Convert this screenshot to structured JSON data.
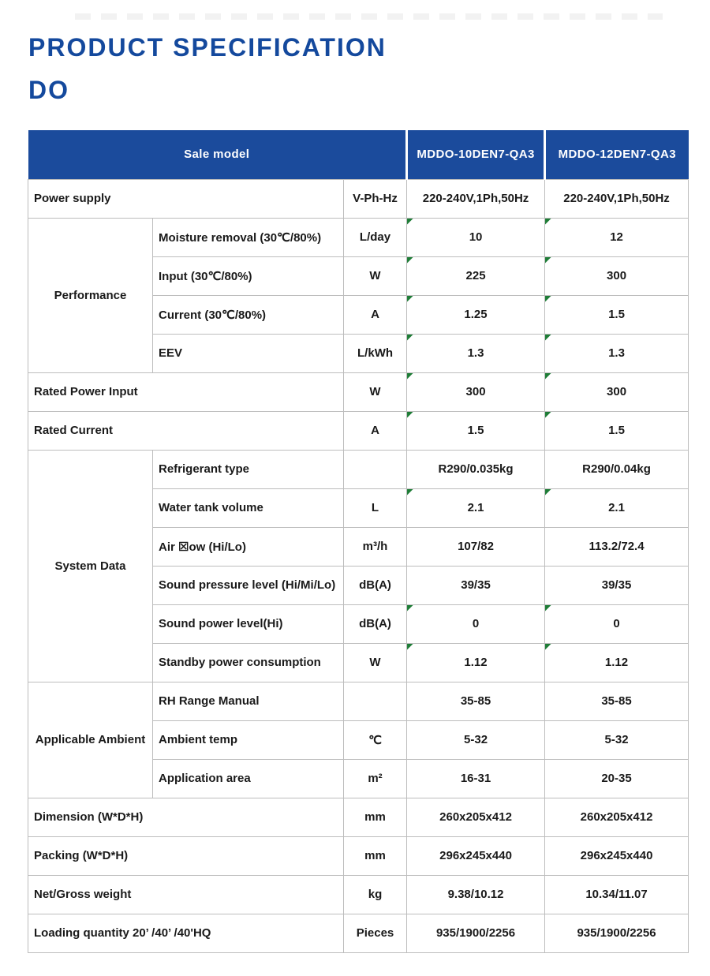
{
  "page": {
    "title_line1": "PRODUCT SPECIFICATION",
    "title_line2": "DO"
  },
  "colors": {
    "header_background": "#1b4b9c",
    "title_blue": "#14499d",
    "row_shade": "#efefef",
    "grid_border": "#bdbdbd",
    "cell_flag_green": "#1e7c36"
  },
  "table": {
    "header": {
      "label": "Sale model",
      "models": [
        "MDDO-10DEN7-QA3",
        "MDDO-12DEN7-QA3"
      ]
    },
    "rows": [
      {
        "group": null,
        "group_rowspan": 0,
        "label": "Power supply",
        "label_colspan": 2,
        "unit": "V-Ph-Hz",
        "values": [
          "220-240V,1Ph,50Hz",
          "220-240V,1Ph,50Hz"
        ],
        "shaded": false,
        "flagged": false
      },
      {
        "group": "Performance",
        "group_rowspan": 4,
        "label": "Moisture removal (30℃/80%)",
        "label_colspan": 1,
        "unit": "L/day",
        "values": [
          "10",
          "12"
        ],
        "shaded": true,
        "flagged": true
      },
      {
        "group": null,
        "group_rowspan": 0,
        "label": "Input (30℃/80%)",
        "label_colspan": 1,
        "unit": "W",
        "values": [
          "225",
          "300"
        ],
        "shaded": false,
        "flagged": true
      },
      {
        "group": null,
        "group_rowspan": 0,
        "label": "Current (30℃/80%)",
        "label_colspan": 1,
        "unit": "A",
        "values": [
          "1.25",
          "1.5"
        ],
        "shaded": true,
        "flagged": true
      },
      {
        "group": null,
        "group_rowspan": 0,
        "label": "EEV",
        "label_colspan": 1,
        "unit": "L/kWh",
        "values": [
          "1.3",
          "1.3"
        ],
        "shaded": false,
        "flagged": true
      },
      {
        "group": null,
        "group_rowspan": 0,
        "label": "Rated Power Input",
        "label_colspan": 2,
        "unit": "W",
        "values": [
          "300",
          "300"
        ],
        "shaded": true,
        "flagged": true
      },
      {
        "group": null,
        "group_rowspan": 0,
        "label": "Rated Current",
        "label_colspan": 2,
        "unit": "A",
        "values": [
          "1.5",
          "1.5"
        ],
        "shaded": false,
        "flagged": true
      },
      {
        "group": "System Data",
        "group_rowspan": 6,
        "label": "Refrigerant type",
        "label_colspan": 1,
        "unit": "",
        "values": [
          "R290/0.035kg",
          "R290/0.04kg"
        ],
        "shaded": true,
        "flagged": false
      },
      {
        "group": null,
        "group_rowspan": 0,
        "label": "Water tank volume",
        "label_colspan": 1,
        "unit": "L",
        "values": [
          "2.1",
          "2.1"
        ],
        "shaded": false,
        "flagged": true
      },
      {
        "group": null,
        "group_rowspan": 0,
        "label": "Air ☒ow (Hi/Lo)",
        "label_colspan": 1,
        "unit": "m³/h",
        "values": [
          "107/82",
          "113.2/72.4"
        ],
        "shaded": true,
        "flagged": false
      },
      {
        "group": null,
        "group_rowspan": 0,
        "label": "Sound pressure level (Hi/Mi/Lo)",
        "label_colspan": 1,
        "unit": "dB(A)",
        "values": [
          "39/35",
          "39/35"
        ],
        "shaded": false,
        "flagged": false
      },
      {
        "group": null,
        "group_rowspan": 0,
        "label": "Sound power level(Hi)",
        "label_colspan": 1,
        "unit": "dB(A)",
        "values": [
          "0",
          "0"
        ],
        "shaded": true,
        "flagged": true
      },
      {
        "group": null,
        "group_rowspan": 0,
        "label": "Standby power consumption",
        "label_colspan": 1,
        "unit": "W",
        "values": [
          "1.12",
          "1.12"
        ],
        "shaded": false,
        "flagged": true
      },
      {
        "group": "Applicable Ambient",
        "group_rowspan": 3,
        "label": "RH Range Manual",
        "label_colspan": 1,
        "unit": "",
        "values": [
          "35-85",
          "35-85"
        ],
        "shaded": true,
        "flagged": false
      },
      {
        "group": null,
        "group_rowspan": 0,
        "label": "Ambient temp",
        "label_colspan": 1,
        "unit": "℃",
        "values": [
          "5-32",
          "5-32"
        ],
        "shaded": false,
        "flagged": false
      },
      {
        "group": null,
        "group_rowspan": 0,
        "label": "Application area",
        "label_colspan": 1,
        "unit": "m²",
        "values": [
          "16-31",
          "20-35"
        ],
        "shaded": true,
        "flagged": false
      },
      {
        "group": null,
        "group_rowspan": 0,
        "label": "Dimension (W*D*H)",
        "label_colspan": 2,
        "unit": "mm",
        "values": [
          "260x205x412",
          "260x205x412"
        ],
        "shaded": false,
        "flagged": false
      },
      {
        "group": null,
        "group_rowspan": 0,
        "label": "Packing (W*D*H)",
        "label_colspan": 2,
        "unit": "mm",
        "values": [
          "296x245x440",
          "296x245x440"
        ],
        "shaded": true,
        "flagged": false
      },
      {
        "group": null,
        "group_rowspan": 0,
        "label": "Net/Gross weight",
        "label_colspan": 2,
        "unit": "kg",
        "values": [
          "9.38/10.12",
          "10.34/11.07"
        ],
        "shaded": false,
        "flagged": false
      },
      {
        "group": null,
        "group_rowspan": 0,
        "label": "Loading quantity 20’ /40’ /40'HQ",
        "label_colspan": 2,
        "unit": "Pieces",
        "values": [
          "935/1900/2256",
          "935/1900/2256"
        ],
        "shaded": true,
        "flagged": false
      }
    ]
  }
}
